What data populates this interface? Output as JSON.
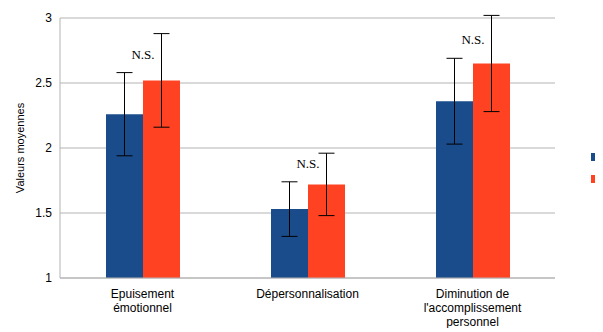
{
  "chart_data": {
    "type": "bar",
    "y_label": "Valeurs moyennes",
    "categories": [
      "Epuisement émotionnel",
      "Dépersonnalisation",
      "Diminution de l'accomplissement personnel"
    ],
    "series": [
      {
        "color": "#1a4c8c",
        "values": [
          2.26,
          1.53,
          2.36
        ],
        "errors": [
          0.32,
          0.21,
          0.33
        ]
      },
      {
        "color": "#ff4222",
        "values": [
          2.52,
          1.72,
          2.65
        ],
        "errors": [
          0.36,
          0.24,
          0.37
        ]
      }
    ],
    "annotations": [
      "N.S.",
      "N.S.",
      "N.S."
    ],
    "ylim": [
      1,
      3
    ],
    "yticks": [
      1,
      1.5,
      2,
      2.5,
      3
    ],
    "grid": true,
    "legend": "right"
  }
}
